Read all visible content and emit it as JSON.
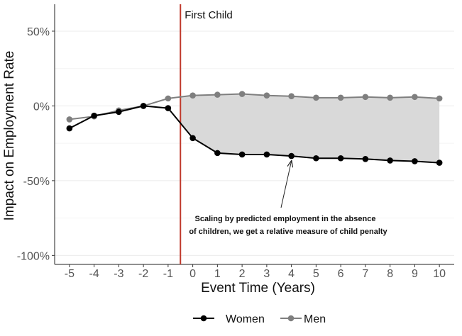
{
  "chart_data": {
    "type": "line",
    "x": [
      -5,
      -4,
      -3,
      -2,
      -1,
      0,
      1,
      2,
      3,
      4,
      5,
      6,
      7,
      8,
      9,
      10
    ],
    "series": [
      {
        "name": "Women",
        "color": "#000000",
        "values": [
          -15,
          -6.5,
          -4,
          0,
          -1.5,
          -21.5,
          -31.5,
          -32.5,
          -32.5,
          -33.5,
          -35,
          -35,
          -35.5,
          -36.5,
          -37,
          -38
        ]
      },
      {
        "name": "Men",
        "color": "#7f7f7f",
        "values": [
          -9,
          -7,
          -3,
          0,
          5,
          7,
          7.5,
          8,
          7,
          6.5,
          5.5,
          5.5,
          6,
          5.5,
          6,
          5
        ]
      }
    ],
    "xlabel": "Event Time (Years)",
    "ylabel": "Impact on Employment Rate",
    "xticks": [
      "-5",
      "-4",
      "-3",
      "-2",
      "-1",
      "0",
      "1",
      "2",
      "3",
      "4",
      "5",
      "6",
      "7",
      "8",
      "9",
      "10"
    ],
    "yticks": [
      {
        "value": 50,
        "label": "50%"
      },
      {
        "value": 0,
        "label": "0%"
      },
      {
        "value": -50,
        "label": "-50%"
      },
      {
        "value": -100,
        "label": "-100%"
      }
    ],
    "xlim": [
      -5.6,
      10.6
    ],
    "ylim": [
      -106,
      68
    ],
    "grid": true,
    "legend_position": "bottom",
    "event_line": {
      "x": -0.5,
      "label": "First Child",
      "color": "#c0392b"
    },
    "shading": {
      "from_x": -0.5,
      "to_x": 10,
      "color": "#d9d9d9"
    },
    "annotation": {
      "lines": [
        "Scaling by predicted employment in the absence",
        "of children, we get a relative measure of child penalty"
      ],
      "arrow_to": {
        "x": 4,
        "y": -34
      }
    }
  }
}
